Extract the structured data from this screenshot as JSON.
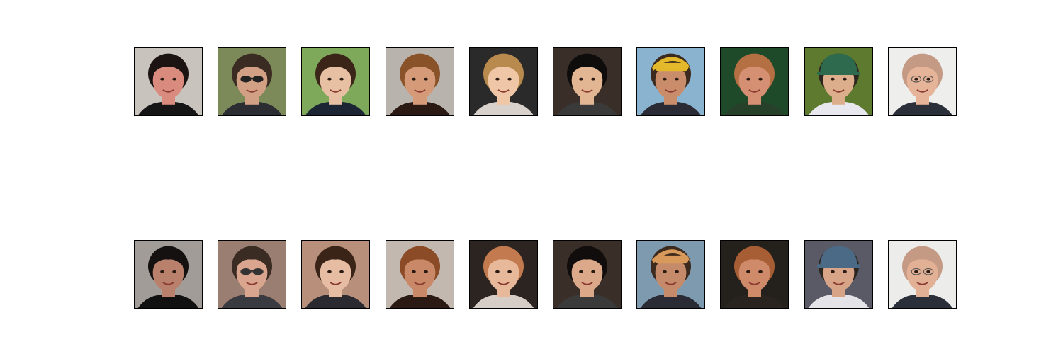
{
  "figure": {
    "rows": [
      {
        "name": "top-row",
        "faces": [
          {
            "bg": "#c9c3bd",
            "skin": "#d98b7e",
            "hair": "#1b1412",
            "shirt": "#151515",
            "accessory": "none",
            "accent": "#e6e6e6"
          },
          {
            "bg": "#7c8a5a",
            "skin": "#d1a085",
            "hair": "#3a2c22",
            "shirt": "#2b2d33",
            "accessory": "sunglasses",
            "accent": "#222"
          },
          {
            "bg": "#7ea85a",
            "skin": "#e7c0a4",
            "hair": "#3b2418",
            "shirt": "#1c2533",
            "accessory": "none",
            "accent": "#c0384a"
          },
          {
            "bg": "#b9b3ad",
            "skin": "#d59b78",
            "hair": "#8a5228",
            "shirt": "#2b1a14",
            "accessory": "none",
            "accent": "#efe8e3"
          },
          {
            "bg": "#2a2a2a",
            "skin": "#f0c7a6",
            "hair": "#b98a4e",
            "shirt": "#d9d2cc",
            "accessory": "none",
            "accent": "#8a6a3a"
          },
          {
            "bg": "#3a2f28",
            "skin": "#e2b593",
            "hair": "#0f0d0c",
            "shirt": "#3a3a3a",
            "accessory": "none",
            "accent": "#6e7a88"
          },
          {
            "bg": "#8ab3d0",
            "skin": "#c98d6c",
            "hair": "#3b2a1d",
            "shirt": "#2b2b35",
            "accessory": "bandana",
            "accent": "#e3b82a"
          },
          {
            "bg": "#1f4a2a",
            "skin": "#d58f72",
            "hair": "#b47042",
            "shirt": "#26402a",
            "accessory": "none",
            "accent": "#a0603a"
          },
          {
            "bg": "#5e7a2e",
            "skin": "#dcae8c",
            "hair": "#2c2620",
            "shirt": "#e8e8ee",
            "accessory": "helmet",
            "accent": "#2d6a4e"
          },
          {
            "bg": "#eeeeec",
            "skin": "#e6b498",
            "hair": "#c49a84",
            "shirt": "#2a2f3a",
            "accessory": "glasses",
            "accent": "#ffffff"
          }
        ]
      },
      {
        "name": "bottom-row",
        "faces": [
          {
            "bg": "#a19c98",
            "skin": "#b9806c",
            "hair": "#141110",
            "shirt": "#111111",
            "accessory": "none",
            "accent": "#d8d8d8"
          },
          {
            "bg": "#9a7e72",
            "skin": "#d9a58e",
            "hair": "#3a2c22",
            "shirt": "#3a3b40",
            "accessory": "sunglasses",
            "accent": "#333"
          },
          {
            "bg": "#b78f7a",
            "skin": "#e6bca2",
            "hair": "#3a2418",
            "shirt": "#2a2a30",
            "accessory": "none",
            "accent": "#c27e72"
          },
          {
            "bg": "#c2b8b0",
            "skin": "#c98867",
            "hair": "#8a4b26",
            "shirt": "#2b1a14",
            "accessory": "none",
            "accent": "#efe8e3"
          },
          {
            "bg": "#2b2420",
            "skin": "#e8b89a",
            "hair": "#c27a4e",
            "shirt": "#d5cdc6",
            "accessory": "none",
            "accent": "#8a5a3a"
          },
          {
            "bg": "#3a2f28",
            "skin": "#dba98a",
            "hair": "#100d0c",
            "shirt": "#3a3a3a",
            "accessory": "none",
            "accent": "#6a6a6a"
          },
          {
            "bg": "#7e9aaf",
            "skin": "#c58a6a",
            "hair": "#3b2a1d",
            "shirt": "#2b2b35",
            "accessory": "bandana",
            "accent": "#d89a5a"
          },
          {
            "bg": "#24201c",
            "skin": "#cf8a6a",
            "hair": "#a85e34",
            "shirt": "#2a2420",
            "accessory": "none",
            "accent": "#9a5a34"
          },
          {
            "bg": "#5a5a66",
            "skin": "#d7a488",
            "hair": "#2c2620",
            "shirt": "#e3e3e8",
            "accessory": "helmet",
            "accent": "#4a6a86"
          },
          {
            "bg": "#ececea",
            "skin": "#e2b094",
            "hair": "#c49a84",
            "shirt": "#2a2f3a",
            "accessory": "glasses",
            "accent": "#ffffff"
          }
        ]
      }
    ]
  }
}
